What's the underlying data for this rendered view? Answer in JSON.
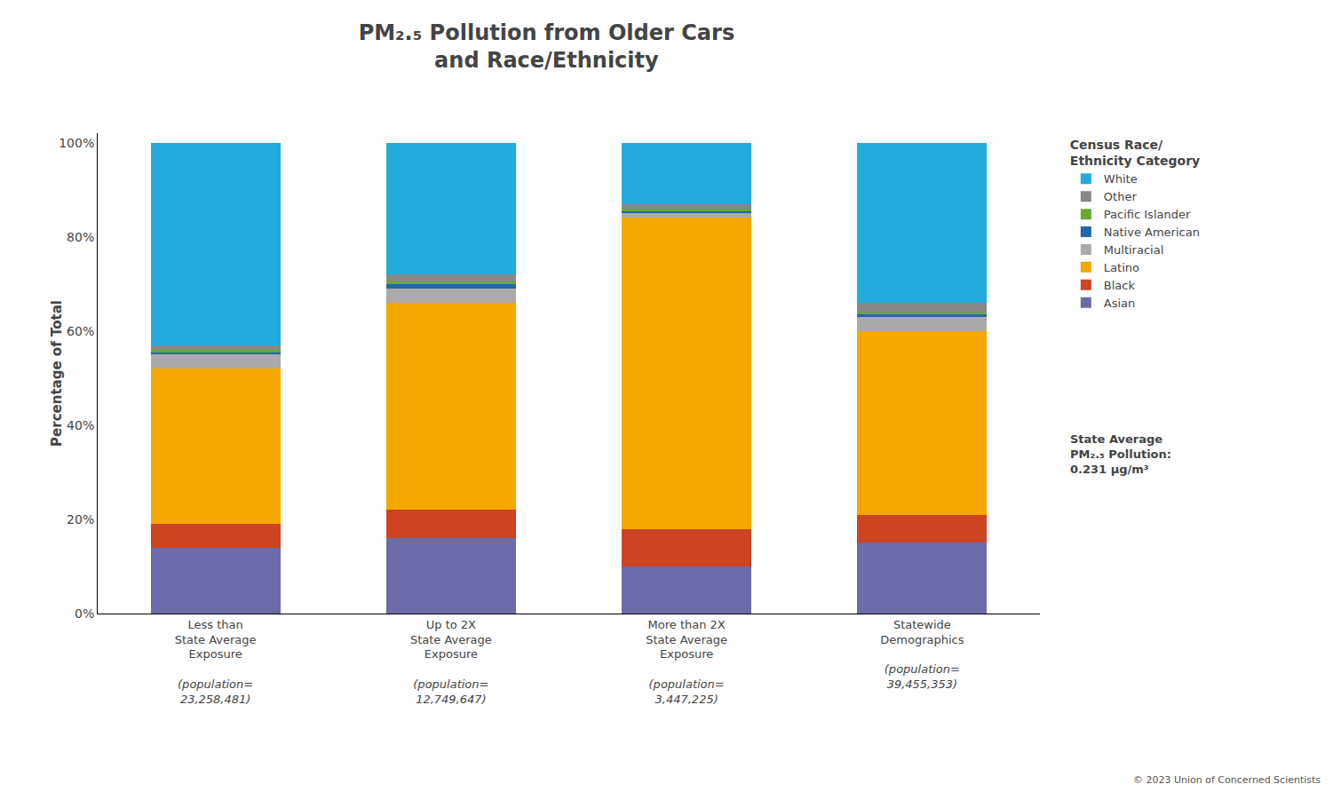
{
  "chart_data": {
    "type": "bar",
    "title": "PM₂.₅ Pollution from Older Cars\nand Race/Ethnicity",
    "ylabel": "Percentage of Total",
    "categories": [
      "Less than\nState Average\nExposure",
      "Up to 2X\nState Average\nExposure",
      "More than 2X\nState Average\nExposure",
      "Statewide\nDemographics"
    ],
    "category_populations": [
      "(population=\n23,258,481)",
      "(population=\n12,749,647)",
      "(population=\n3,447,225)",
      "(population=\n39,455,353)"
    ],
    "stacked": true,
    "legend": "right",
    "legend_title": "Census Race/\nEthnicity Category",
    "series": [
      {
        "name": "Asian",
        "color": "#6b6baa",
        "values": [
          14.0,
          16.0,
          10.0,
          15.0
        ]
      },
      {
        "name": "Black",
        "color": "#cc4422",
        "values": [
          5.0,
          6.0,
          8.0,
          6.0
        ]
      },
      {
        "name": "Latino",
        "color": "#f5a800",
        "values": [
          33.0,
          44.0,
          66.0,
          39.0
        ]
      },
      {
        "name": "Multiracial",
        "color": "#aaaaaa",
        "values": [
          3.0,
          3.0,
          1.0,
          3.0
        ]
      },
      {
        "name": "Native American",
        "color": "#2266aa",
        "values": [
          0.5,
          1.0,
          0.5,
          0.5
        ]
      },
      {
        "name": "Pacific Islander",
        "color": "#66aa33",
        "values": [
          0.5,
          0.5,
          0.5,
          0.5
        ]
      },
      {
        "name": "Other",
        "color": "#888888",
        "values": [
          1.0,
          1.5,
          1.0,
          2.0
        ]
      },
      {
        "name": "White",
        "color": "#22aadd",
        "values": [
          43.0,
          28.0,
          13.0,
          34.0
        ]
      }
    ],
    "ylim": [
      0,
      102
    ],
    "yticks": [
      {
        "value": 0,
        "label": "0%"
      },
      {
        "value": 20,
        "label": "20%"
      },
      {
        "value": 40,
        "label": "40%"
      },
      {
        "value": 60,
        "label": "60%"
      },
      {
        "value": 80,
        "label": "80%"
      },
      {
        "value": 100,
        "label": "100%"
      }
    ],
    "grid": false,
    "annotations": [
      "State Average\nPM₂.₅ Pollution:\n0.231 μg/m³",
      "© 2023 Union of Concerned Scientists"
    ]
  }
}
